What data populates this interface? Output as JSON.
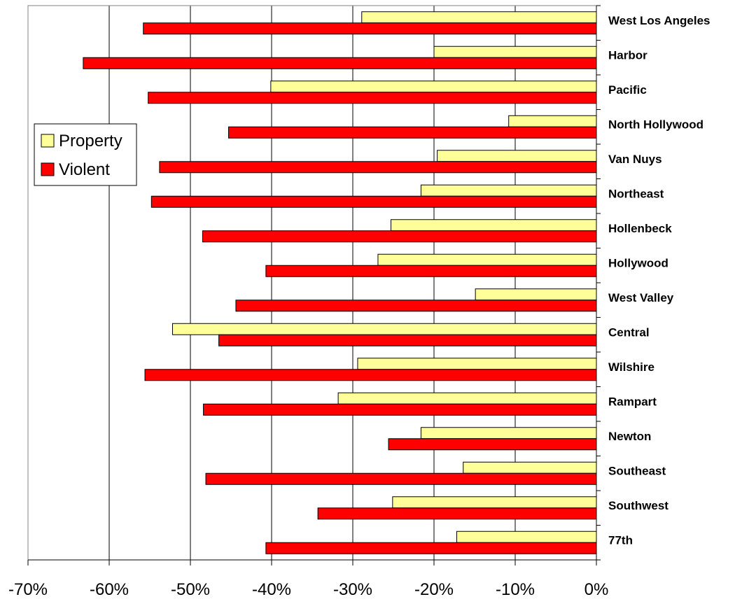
{
  "chart_data": {
    "type": "bar",
    "orientation": "horizontal",
    "categories": [
      "West Los Angeles",
      "Harbor",
      "Pacific",
      "North Hollywood",
      "Van Nuys",
      "Northeast",
      "Hollenbeck",
      "Hollywood",
      "West Valley",
      "Central",
      "Wilshire",
      "Rampart",
      "Newton",
      "Southeast",
      "Southwest",
      "77th"
    ],
    "series": [
      {
        "name": "Property",
        "color": "#FFFF99",
        "values": [
          -28.9,
          -20.0,
          -40.1,
          -10.8,
          -19.6,
          -21.6,
          -25.3,
          -26.9,
          -14.9,
          -52.2,
          -29.4,
          -31.8,
          -21.6,
          -16.4,
          -25.1,
          -17.2
        ]
      },
      {
        "name": "Violent",
        "color": "#FF0000",
        "values": [
          -55.8,
          -63.2,
          -55.2,
          -45.3,
          -53.8,
          -54.8,
          -48.5,
          -40.7,
          -44.4,
          -46.5,
          -55.6,
          -48.4,
          -25.6,
          -48.1,
          -34.3,
          -40.7
        ]
      }
    ],
    "xlim": [
      -70,
      0
    ],
    "xticks": [
      "-70%",
      "-60%",
      "-50%",
      "-40%",
      "-30%",
      "-20%",
      "-10%",
      "0%"
    ],
    "grid": "vertical",
    "legend": "left-upper",
    "title": "",
    "xlabel": "",
    "ylabel": ""
  }
}
